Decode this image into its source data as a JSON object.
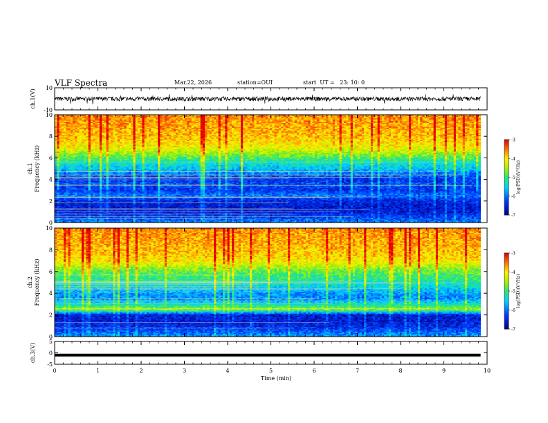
{
  "header": {
    "title": "VLF Spectra",
    "date": "Mar.22, 2026",
    "station": "station=OUI",
    "start": "start  UT =   23: 10: 0"
  },
  "chart_data": [
    {
      "type": "line",
      "panel": "ch1-waveform",
      "ylabel": "ch.1(V)",
      "ylim": [
        -10,
        10
      ],
      "y_ticks": [
        "10",
        "-10"
      ],
      "x": [
        0,
        0.5,
        1,
        1.5,
        2,
        2.5,
        3,
        3.5,
        4,
        4.5,
        5,
        5.5,
        6,
        6.5,
        7,
        7.5,
        8,
        8.5,
        9,
        9.5,
        9.85
      ],
      "values": [
        0,
        1,
        -1,
        0.5,
        -0.5,
        1,
        0,
        -1,
        0.5,
        0,
        -0.5,
        1,
        0,
        -1,
        0.5,
        0,
        -0.5,
        1,
        0,
        -1,
        0
      ],
      "envelope": 2,
      "color": "#000000"
    },
    {
      "type": "heatmap",
      "panel": "ch1-spectrogram",
      "ylabel": "Frequency (kHz)",
      "channel_label": "ch.1",
      "xlim": [
        0,
        10
      ],
      "ylim": [
        0,
        10
      ],
      "y_ticks": [
        "0",
        "2",
        "4",
        "6",
        "8",
        "10"
      ],
      "data_end_min": 9.85,
      "freq_levels": [
        10,
        9,
        8,
        7,
        6.5,
        6,
        5.5,
        5,
        4.5,
        4,
        3.5,
        3,
        2.5,
        2,
        1.5,
        1,
        0.5,
        0
      ],
      "log_psd": [
        -3.6,
        -3.7,
        -3.8,
        -4.1,
        -4.5,
        -4.9,
        -5.3,
        -5.6,
        -6.0,
        -6.4,
        -6.2,
        -6.4,
        -6.0,
        -6.5,
        -6.6,
        -6.6,
        -6.3,
        -5.9
      ],
      "colorbar": {
        "label": "log(PSD)(V²/Hz)",
        "min": -7,
        "max": -3,
        "ticks": [
          "-3",
          "-4",
          "-5",
          "-6",
          "-7"
        ]
      }
    },
    {
      "type": "heatmap",
      "panel": "ch2-spectrogram",
      "ylabel": "Frequency (kHz)",
      "channel_label": "ch.2",
      "xlim": [
        0,
        10
      ],
      "ylim": [
        0,
        10
      ],
      "y_ticks": [
        "0",
        "2",
        "4",
        "6",
        "8",
        "10"
      ],
      "data_end_min": 9.85,
      "freq_levels": [
        10,
        9,
        8,
        7,
        6.5,
        6,
        5.5,
        5,
        4.5,
        4,
        3.5,
        3,
        2.5,
        2,
        1.5,
        1,
        0.5,
        0
      ],
      "log_psd": [
        -3.6,
        -3.7,
        -3.8,
        -4.0,
        -4.4,
        -4.8,
        -5.0,
        -5.2,
        -5.5,
        -5.8,
        -5.9,
        -5.3,
        -4.6,
        -6.6,
        -6.6,
        -6.5,
        -6.2,
        -5.8
      ],
      "colorbar": {
        "label": "log(PSD)(V²/Hz)",
        "min": -7,
        "max": -3,
        "ticks": [
          "-3",
          "-4",
          "-5",
          "-6",
          "-7"
        ]
      }
    },
    {
      "type": "line",
      "panel": "ch3-waveform",
      "ylabel": "ch.3(V)",
      "ylim": [
        -5,
        5
      ],
      "y_ticks": [
        "5",
        "0",
        "-5"
      ],
      "x": [
        0,
        9.85
      ],
      "values": [
        -1,
        -1
      ],
      "color": "#000000",
      "xlabel": "Time (min)",
      "xlim": [
        0,
        10
      ],
      "x_ticks": [
        "0",
        "1",
        "2",
        "3",
        "4",
        "5",
        "6",
        "7",
        "8",
        "9",
        "10"
      ]
    }
  ]
}
